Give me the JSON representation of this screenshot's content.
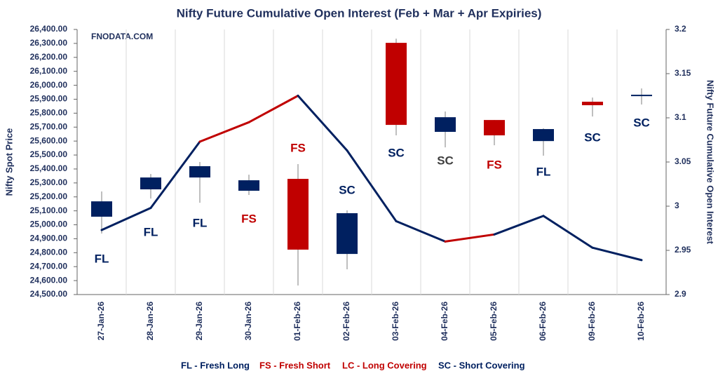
{
  "chart_data": {
    "type": "candlestick",
    "title": "Nifty Future Cumulative Open Interest (Feb + Mar + Apr Expiries)",
    "watermark": "FNODATA.COM",
    "y_label": "Nifty Spot Price",
    "y2_label": "Nifty Future Cumulative Open Interest",
    "categories": [
      "27-Jan-26",
      "28-Jan-26",
      "29-Jan-26",
      "30-Jan-26",
      "01-Feb-26",
      "02-Feb-26",
      "03-Feb-26",
      "04-Feb-26",
      "05-Feb-26",
      "06-Feb-26",
      "09-Feb-26",
      "10-Feb-26"
    ],
    "open": [
      25058,
      25254,
      25339,
      25319,
      25329,
      24791,
      26304,
      25666,
      25751,
      25600,
      25882,
      25922
    ],
    "high": [
      25239,
      25364,
      25450,
      25359,
      25435,
      25103,
      26334,
      25812,
      25751,
      25691,
      25912,
      25977
    ],
    "low": [
      24937,
      25188,
      25158,
      25214,
      24565,
      24681,
      25641,
      25555,
      25570,
      25495,
      25776,
      25862
    ],
    "close": [
      25168,
      25339,
      25420,
      25244,
      24822,
      25083,
      25716,
      25771,
      25641,
      25686,
      25857,
      25932
    ],
    "candle_colors": [
      "#002060",
      "#002060",
      "#002060",
      "#002060",
      "#c00000",
      "#002060",
      "#c00000",
      "#002060",
      "#c00000",
      "#002060",
      "#c00000",
      "#002060"
    ],
    "oi": {
      "axis": "y2",
      "values": [
        2.973,
        2.998,
        3.073,
        3.095,
        3.125,
        3.063,
        2.983,
        2.96,
        2.968,
        2.989,
        2.953,
        2.939
      ],
      "segment_colors": [
        "#002060",
        "#002060",
        "#c00000",
        "#c00000",
        "#002060",
        "#002060",
        "#002060",
        "#c00000",
        "#002060",
        "#002060",
        "#002060"
      ]
    },
    "signals": [
      {
        "text": "FL",
        "color": "#002060"
      },
      {
        "text": "FL",
        "color": "#002060"
      },
      {
        "text": "FL",
        "color": "#002060"
      },
      {
        "text": "FS",
        "color": "#c00000"
      },
      {
        "text": "FS",
        "color": "#c00000"
      },
      {
        "text": "SC",
        "color": "#002060"
      },
      {
        "text": "SC",
        "color": "#002060"
      },
      {
        "text": "SC",
        "color": "#404040"
      },
      {
        "text": "FS",
        "color": "#c00000"
      },
      {
        "text": "FL",
        "color": "#002060"
      },
      {
        "text": "SC",
        "color": "#002060"
      },
      {
        "text": "SC",
        "color": "#002060"
      }
    ],
    "legend": [
      {
        "text": "FL - Fresh Long",
        "color": "#002060"
      },
      {
        "text": "FS - Fresh Short",
        "color": "#c00000"
      },
      {
        "text": "LC - Long Covering",
        "color": "#c00000"
      },
      {
        "text": "SC - Short Covering",
        "color": "#002060"
      }
    ],
    "ylim": [
      24500,
      26400
    ],
    "yticks": [
      {
        "value": 24500,
        "label": "24,500.00"
      },
      {
        "value": 24600,
        "label": "24,600.00"
      },
      {
        "value": 24700,
        "label": "24,700.00"
      },
      {
        "value": 24800,
        "label": "24,800.00"
      },
      {
        "value": 24900,
        "label": "24,900.00"
      },
      {
        "value": 25000,
        "label": "25,000.00"
      },
      {
        "value": 25100,
        "label": "25,100.00"
      },
      {
        "value": 25200,
        "label": "25,200.00"
      },
      {
        "value": 25300,
        "label": "25,300.00"
      },
      {
        "value": 25400,
        "label": "25,400.00"
      },
      {
        "value": 25500,
        "label": "25,500.00"
      },
      {
        "value": 25600,
        "label": "25,600.00"
      },
      {
        "value": 25700,
        "label": "25,700.00"
      },
      {
        "value": 25800,
        "label": "25,800.00"
      },
      {
        "value": 25900,
        "label": "25,900.00"
      },
      {
        "value": 26000,
        "label": "26,000.00"
      },
      {
        "value": 26100,
        "label": "26,100.00"
      },
      {
        "value": 26200,
        "label": "26,200.00"
      },
      {
        "value": 26300,
        "label": "26,300.00"
      },
      {
        "value": 26400,
        "label": "26,400.00"
      }
    ],
    "y2lim": [
      2.9,
      3.2
    ],
    "y2ticks": [
      2.9,
      2.95,
      3,
      3.05,
      3.1,
      3.15,
      3.2
    ],
    "grid": true
  }
}
